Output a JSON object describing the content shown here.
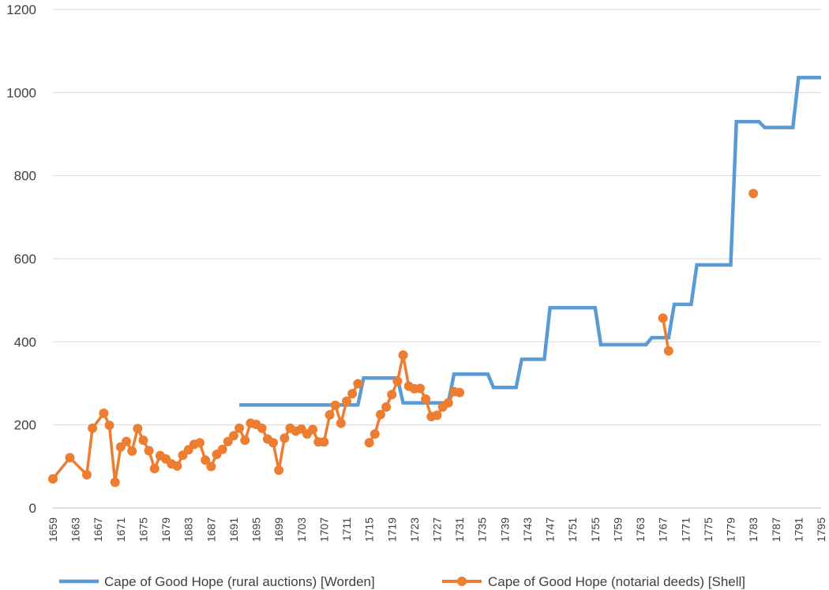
{
  "chart_data": {
    "type": "line",
    "ylim": [
      0,
      1200
    ],
    "yticks": [
      0,
      200,
      400,
      600,
      800,
      1000,
      1200
    ],
    "xlim": [
      1659,
      1795
    ],
    "xtick_labels": [
      "1659",
      "1663",
      "1667",
      "1671",
      "1675",
      "1679",
      "1683",
      "1687",
      "1691",
      "1695",
      "1699",
      "1703",
      "1707",
      "1711",
      "1715",
      "1719",
      "1723",
      "1727",
      "1731",
      "1735",
      "1739",
      "1743",
      "1747",
      "1751",
      "1755",
      "1759",
      "1763",
      "1767",
      "1771",
      "1775",
      "1779",
      "1783",
      "1787",
      "1791",
      "1795"
    ],
    "grid": true,
    "legend_position": "bottom",
    "series": [
      {
        "name": "Cape of Good Hope (rural auctions) [Worden]",
        "color": "#5B9BD5",
        "markers": false,
        "step_points": [
          [
            1692,
            248
          ],
          [
            1713,
            248
          ],
          [
            1714,
            313
          ],
          [
            1720,
            313
          ],
          [
            1721,
            253
          ],
          [
            1729,
            253
          ],
          [
            1730,
            322
          ],
          [
            1736,
            322
          ],
          [
            1737,
            290
          ],
          [
            1741,
            290
          ],
          [
            1742,
            358
          ],
          [
            1746,
            358
          ],
          [
            1747,
            482
          ],
          [
            1755,
            482
          ],
          [
            1756,
            393
          ],
          [
            1764,
            393
          ],
          [
            1765,
            410
          ],
          [
            1768,
            410
          ],
          [
            1769,
            490
          ],
          [
            1772,
            490
          ],
          [
            1773,
            585
          ],
          [
            1779,
            585
          ],
          [
            1780,
            930
          ],
          [
            1784,
            930
          ],
          [
            1785,
            916
          ],
          [
            1790,
            916
          ],
          [
            1791,
            1036
          ],
          [
            1795,
            1036
          ]
        ]
      },
      {
        "name": "Cape of Good Hope (notarial deeds) [Shell]",
        "color": "#ED7D31",
        "markers": true,
        "points": [
          [
            1659,
            70
          ],
          [
            1662,
            121
          ],
          [
            1665,
            80
          ],
          [
            1666,
            192
          ],
          [
            1668,
            228
          ],
          [
            1669,
            199
          ],
          [
            1670,
            62
          ],
          [
            1671,
            147
          ],
          [
            1672,
            160
          ],
          [
            1673,
            137
          ],
          [
            1674,
            191
          ],
          [
            1675,
            163
          ],
          [
            1676,
            138
          ],
          [
            1677,
            95
          ],
          [
            1678,
            126
          ],
          [
            1679,
            118
          ],
          [
            1680,
            106
          ],
          [
            1681,
            101
          ],
          [
            1682,
            127
          ],
          [
            1683,
            140
          ],
          [
            1684,
            153
          ],
          [
            1685,
            157
          ],
          [
            1686,
            115
          ],
          [
            1687,
            100
          ],
          [
            1688,
            129
          ],
          [
            1689,
            141
          ],
          [
            1690,
            160
          ],
          [
            1691,
            174
          ],
          [
            1692,
            192
          ],
          [
            1693,
            163
          ],
          [
            1694,
            204
          ],
          [
            1695,
            201
          ],
          [
            1696,
            192
          ],
          [
            1697,
            166
          ],
          [
            1698,
            157
          ],
          [
            1699,
            91
          ],
          [
            1700,
            168
          ],
          [
            1701,
            192
          ],
          [
            1702,
            185
          ],
          [
            1703,
            190
          ],
          [
            1704,
            178
          ],
          [
            1705,
            189
          ],
          [
            1706,
            159
          ],
          [
            1707,
            159
          ],
          [
            1708,
            224
          ],
          [
            1709,
            247
          ],
          [
            1710,
            204
          ],
          [
            1711,
            257
          ],
          [
            1712,
            275
          ],
          [
            1713,
            299
          ],
          null,
          [
            1715,
            157
          ],
          [
            1716,
            178
          ],
          [
            1717,
            225
          ],
          [
            1718,
            243
          ],
          [
            1719,
            273
          ],
          [
            1720,
            305
          ],
          [
            1721,
            368
          ],
          [
            1722,
            293
          ],
          [
            1723,
            287
          ],
          [
            1724,
            288
          ],
          [
            1725,
            262
          ],
          [
            1726,
            220
          ],
          [
            1727,
            223
          ],
          [
            1728,
            243
          ],
          [
            1729,
            253
          ],
          [
            1730,
            280
          ],
          [
            1731,
            278
          ],
          null,
          [
            1767,
            457
          ],
          [
            1768,
            378
          ],
          null,
          [
            1783,
            757
          ]
        ]
      }
    ]
  }
}
